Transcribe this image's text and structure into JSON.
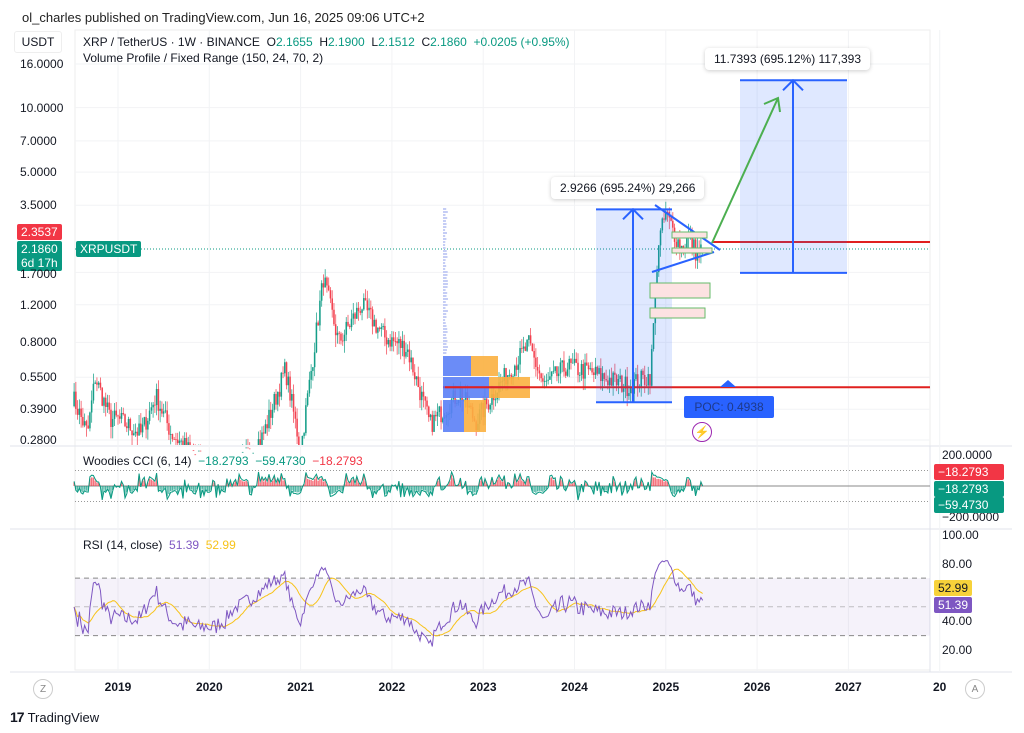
{
  "publisher": "ol_charles published on TradingView.com, Jun 16, 2025 09:06 UTC+2",
  "header": {
    "symbol": "XRP / TetherUS · 1W · BINANCE",
    "o_label": "O",
    "o": "2.1655",
    "h_label": "H",
    "h": "2.1900",
    "l_label": "L",
    "l": "2.1512",
    "c_label": "C",
    "c": "2.1860",
    "change": "+0.0205 (+0.95%)",
    "indicator": "Volume Profile / Fixed Range (150, 24, 70, 2)"
  },
  "price_axis": {
    "unit": "USDT",
    "ticks": [
      "16.0000",
      "10.0000",
      "7.0000",
      "5.0000",
      "3.5000",
      "1.7000",
      "1.2000",
      "0.8000",
      "0.5500",
      "0.3900",
      "0.2800"
    ],
    "tick_values": [
      16,
      10,
      7,
      5,
      3.5,
      1.7,
      1.2,
      0.8,
      0.55,
      0.39,
      0.28
    ],
    "level_tag": "2.3537",
    "last_price_tag": "2.1860",
    "countdown": "6d 17h",
    "symbol_tag": "XRPUSDT"
  },
  "colors": {
    "up": "#089981",
    "down": "#f23645",
    "drawing": "#2962ff",
    "poc": "#e0201f",
    "rsi": "#7e57c2",
    "rsi_ma": "#f7c31a",
    "accent_green": "#4caf50"
  },
  "annotations": {
    "measure1": "2.9266 (695.24%) 29,266",
    "measure2": "11.7393 (695.12%) 117,393",
    "poc": "POC: 0.4938"
  },
  "cci": {
    "title": "Woodies CCI (6, 14)",
    "v1": "−18.2793",
    "v2": "−59.4730",
    "v3": "−18.2793",
    "axis_top": "200.0000",
    "axis_bottom": "−200.0000",
    "tags": [
      "−18.2793",
      "−18.2793",
      "−59.4730"
    ]
  },
  "rsi": {
    "title": "RSI (14, close)",
    "value": "51.39",
    "ma": "52.99",
    "ticks": [
      "100.00",
      "80.00",
      "40.00",
      "20.00"
    ],
    "tick_values": [
      100,
      80,
      40,
      20
    ]
  },
  "time_axis": {
    "labels": [
      "2019",
      "2020",
      "2021",
      "2022",
      "2023",
      "2024",
      "2025",
      "2026",
      "2027",
      "20"
    ],
    "z": "Z",
    "a": "A"
  },
  "footer": {
    "brand": "TradingView"
  },
  "chart_data": {
    "type": "candlestick",
    "timeframe": "1W",
    "y_scale": "log",
    "ylim": [
      0.28,
      16
    ],
    "x_range": [
      "2018-07",
      "2028"
    ],
    "price_path": [
      [
        "2018-07",
        0.45
      ],
      [
        "2018-09",
        0.3
      ],
      [
        "2018-10",
        0.55
      ],
      [
        "2018-12",
        0.35
      ],
      [
        "2019-01",
        0.35
      ],
      [
        "2019-04",
        0.3
      ],
      [
        "2019-06",
        0.45
      ],
      [
        "2019-08",
        0.3
      ],
      [
        "2019-12",
        0.22
      ],
      [
        "2020-03",
        0.18
      ],
      [
        "2020-08",
        0.29
      ],
      [
        "2020-11",
        0.6
      ],
      [
        "2021-01",
        0.25
      ],
      [
        "2021-04",
        1.6
      ],
      [
        "2021-06",
        0.8
      ],
      [
        "2021-09",
        1.2
      ],
      [
        "2021-12",
        0.85
      ],
      [
        "2022-03",
        0.75
      ],
      [
        "2022-06",
        0.33
      ],
      [
        "2022-10",
        0.47
      ],
      [
        "2022-12",
        0.34
      ],
      [
        "2023-03",
        0.5
      ],
      [
        "2023-07",
        0.78
      ],
      [
        "2023-09",
        0.5
      ],
      [
        "2023-12",
        0.62
      ],
      [
        "2024-03",
        0.58
      ],
      [
        "2024-08",
        0.5
      ],
      [
        "2024-11",
        0.56
      ],
      [
        "2024-12",
        2.3
      ],
      [
        "2025-01",
        3.2
      ],
      [
        "2025-03",
        2.2
      ],
      [
        "2025-04",
        2.5
      ],
      [
        "2025-05",
        2.1
      ],
      [
        "2025-06",
        2.186
      ]
    ],
    "last": {
      "open": 2.1655,
      "high": 2.19,
      "low": 2.1512,
      "close": 2.186
    },
    "horizontal_levels": [
      2.3537,
      0.4938
    ],
    "measure_ranges": [
      {
        "from": 0.42,
        "to": 3.35,
        "label": "2.9266 (695.24%) 29,266"
      },
      {
        "from": 1.69,
        "to": 13.43,
        "label": "11.7393 (695.12%) 117,393"
      }
    ],
    "rsi_bands": [
      70,
      30
    ],
    "cci_levels": [
      200,
      100,
      0,
      -100,
      -200
    ]
  }
}
